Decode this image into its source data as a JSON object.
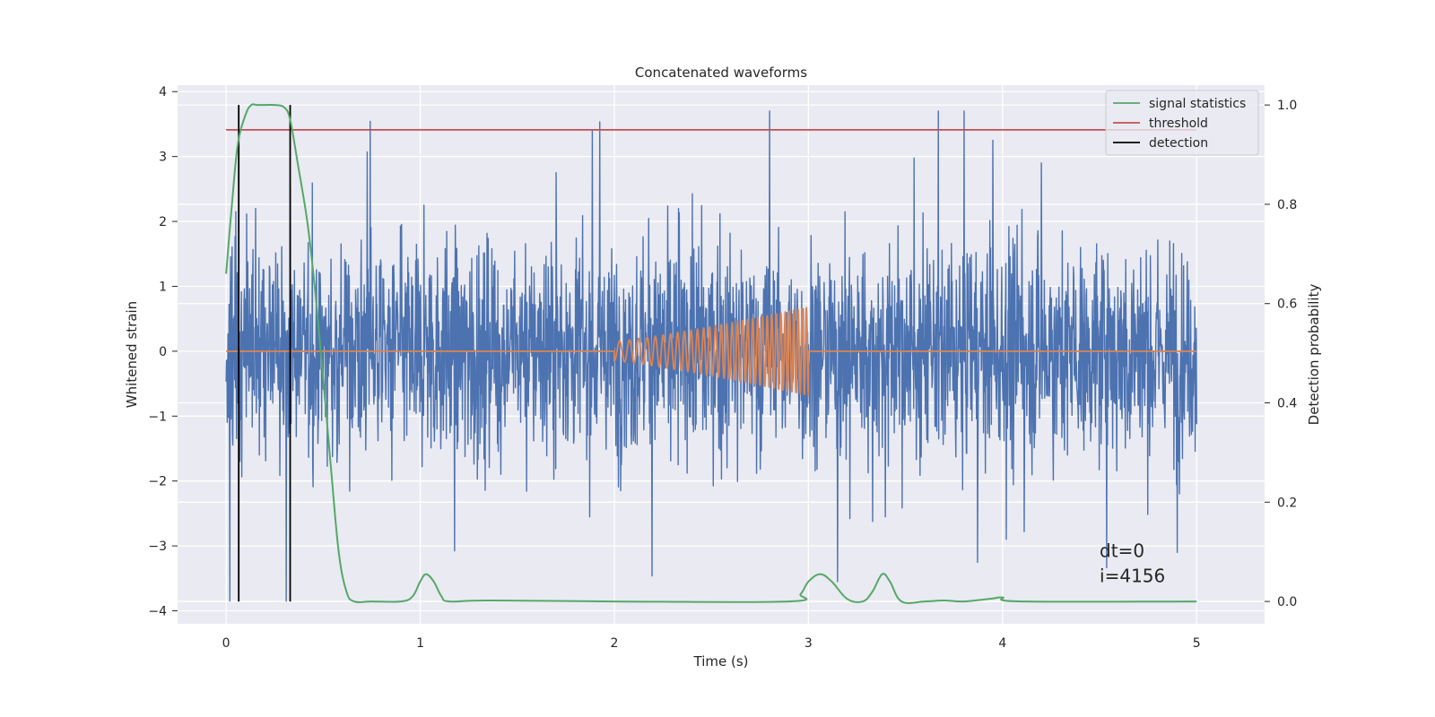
{
  "chart_data": {
    "type": "line",
    "title": "Concatenated waveforms",
    "xlabel": "Time (s)",
    "ylabel": "Whitened strain",
    "y2label": "Detection probability",
    "xlim": [
      -0.25,
      5.35
    ],
    "ylim": [
      -4.2,
      4.1
    ],
    "y2lim": [
      -0.045,
      1.04
    ],
    "xticks": [
      0,
      1,
      2,
      3,
      4,
      5
    ],
    "yticks": [
      -4,
      -3,
      -2,
      -1,
      0,
      1,
      2,
      3,
      4
    ],
    "yticklabels": [
      "−4",
      "−3",
      "−2",
      "−1",
      "0",
      "1",
      "2",
      "3",
      "4"
    ],
    "y2ticks": [
      0.0,
      0.2,
      0.4,
      0.6,
      0.8,
      1.0
    ],
    "y2ticklabels": [
      "0.0",
      "0.2",
      "0.4",
      "0.6",
      "0.8",
      "1.0"
    ],
    "grid": true,
    "legend_position": "top-right",
    "legend": [
      {
        "label": "signal statistics",
        "color": "#55a868"
      },
      {
        "label": "threshold",
        "color": "#c44e52"
      },
      {
        "label": "detection",
        "color": "#000000"
      }
    ],
    "annotation": {
      "lines": [
        "dt=0",
        "i=4156"
      ],
      "x": 4.5,
      "y": -3.45
    },
    "series": {
      "strain": {
        "color": "#4c72b0",
        "x_range": [
          0,
          5
        ],
        "amplitude_envelope": {
          "typical": 1.3,
          "max": 3.7,
          "min": -3.85
        },
        "peaks": [
          {
            "x": 0.02,
            "y": -3.85
          },
          {
            "x": 0.05,
            "y": 2.15
          },
          {
            "x": 0.33,
            "y": 2.5
          },
          {
            "x": 1.02,
            "y": 2.25
          },
          {
            "x": 1.7,
            "y": 2.75
          },
          {
            "x": 2.8,
            "y": 3.7
          },
          {
            "x": 3.15,
            "y": -3.55
          },
          {
            "x": 3.95,
            "y": 3.25
          },
          {
            "x": 4.2,
            "y": 2.9
          },
          {
            "x": 4.9,
            "y": -3.1
          }
        ]
      },
      "injected_waveform": {
        "color": "#dd8452",
        "flat_segments": [
          [
            0,
            2.0
          ],
          [
            3.0,
            5.0
          ]
        ],
        "chirp": {
          "x_start": 2.0,
          "x_end": 3.0,
          "amp_start": 0.15,
          "amp_end": 0.68,
          "cycles": 33
        }
      },
      "signal_statistics": {
        "color": "#55a868",
        "axis": "right",
        "x": [
          0.0,
          0.03,
          0.06,
          0.1,
          0.13,
          0.16,
          0.2,
          0.25,
          0.3,
          0.33,
          0.37,
          0.42,
          0.46,
          0.5,
          0.54,
          0.58,
          0.62,
          0.66,
          0.75,
          0.9,
          0.96,
          1.0,
          1.03,
          1.07,
          1.11,
          1.15,
          1.35,
          2.0,
          2.9,
          2.96,
          3.0,
          3.06,
          3.12,
          3.2,
          3.28,
          3.33,
          3.38,
          3.42,
          3.48,
          3.6,
          3.7,
          3.8,
          3.95,
          4.0,
          4.1,
          5.0
        ],
        "y": [
          0.66,
          0.8,
          0.92,
          0.98,
          1.0,
          1.0,
          1.0,
          1.0,
          0.995,
          0.97,
          0.88,
          0.76,
          0.62,
          0.45,
          0.27,
          0.1,
          0.02,
          0.0,
          0.0,
          0.0,
          0.01,
          0.04,
          0.055,
          0.04,
          0.01,
          0.0,
          0.002,
          0.0,
          0.0,
          0.015,
          0.04,
          0.055,
          0.04,
          0.005,
          0.0,
          0.02,
          0.055,
          0.04,
          0.0,
          0.0,
          0.002,
          0.0,
          0.006,
          0.008,
          0.0,
          0.0
        ]
      },
      "threshold": {
        "color": "#c44e52",
        "axis": "right",
        "value": 0.95,
        "x_range": [
          0,
          5
        ]
      },
      "detection": {
        "color": "#000000",
        "axis": "right",
        "x": [
          0.065,
          0.33
        ],
        "y_range": [
          0.0,
          1.0
        ]
      }
    }
  }
}
